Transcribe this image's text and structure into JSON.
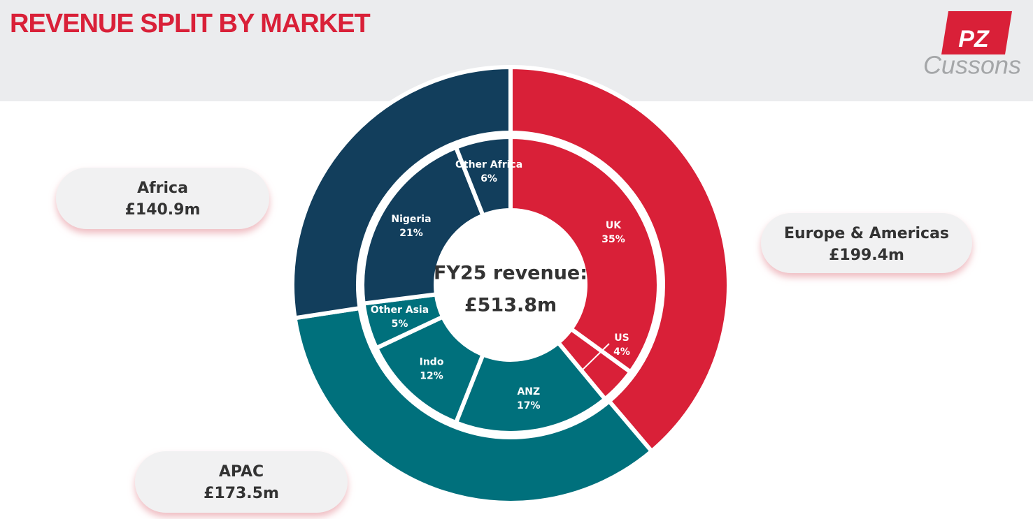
{
  "chart_data": {
    "type": "donut",
    "title": "REVENUE SPLIT BY MARKET",
    "center_label": "FY25 revenue:",
    "total": 513.8,
    "total_label": "£513.8m",
    "rings": [
      {
        "categories": [
          "Europe & Americas",
          "APAC",
          "Africa"
        ],
        "values": [
          199.4,
          173.5,
          140.9
        ],
        "value_labels": [
          "£199.4m",
          "£173.5m",
          "£140.9m"
        ],
        "colors": [
          "#d92038",
          "#00707c",
          "#123e5c"
        ]
      },
      {
        "categories": [
          "UK",
          "US",
          "ANZ",
          "Indo",
          "Other Asia",
          "Nigeria",
          "Other Africa"
        ],
        "values": [
          35,
          4,
          17,
          12,
          5,
          21,
          6
        ],
        "value_labels": [
          "35%",
          "4%",
          "17%",
          "12%",
          "5%",
          "21%",
          "6%"
        ],
        "colors": [
          "#d92038",
          "#d92038",
          "#00707c",
          "#00707c",
          "#00707c",
          "#123e5c",
          "#123e5c"
        ]
      }
    ]
  },
  "logo": {
    "mark": "PZ",
    "name": "Cussons"
  }
}
